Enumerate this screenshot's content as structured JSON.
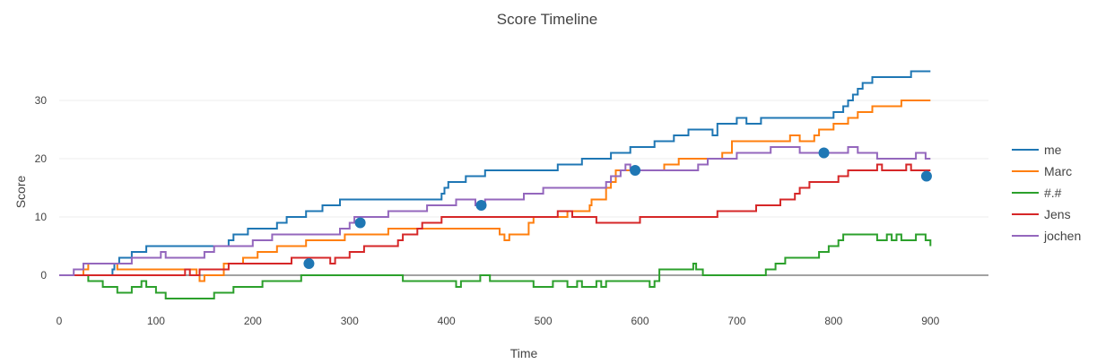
{
  "chart_data": {
    "type": "line",
    "line_shape": "step",
    "title": "Score Timeline",
    "xlabel": "Time",
    "ylabel": "Score",
    "xlim": [
      0,
      960
    ],
    "ylim": [
      -6,
      38
    ],
    "xticks": [
      0,
      100,
      200,
      300,
      400,
      500,
      600,
      700,
      800,
      900
    ],
    "yticks": [
      0,
      10,
      20,
      30
    ],
    "grid": true,
    "legend_position": "right",
    "series": [
      {
        "name": "me",
        "color": "#1f77b4",
        "points": [
          [
            0,
            0
          ],
          [
            50,
            0
          ],
          [
            55,
            1
          ],
          [
            57,
            2
          ],
          [
            62,
            3
          ],
          [
            65,
            3
          ],
          [
            70,
            3
          ],
          [
            75,
            4
          ],
          [
            90,
            5
          ],
          [
            100,
            5
          ],
          [
            140,
            5
          ],
          [
            170,
            5
          ],
          [
            175,
            6
          ],
          [
            180,
            7
          ],
          [
            195,
            8
          ],
          [
            225,
            9
          ],
          [
            235,
            10
          ],
          [
            255,
            11
          ],
          [
            265,
            11
          ],
          [
            272,
            12
          ],
          [
            290,
            13
          ],
          [
            380,
            13
          ],
          [
            395,
            14
          ],
          [
            398,
            15
          ],
          [
            402,
            16
          ],
          [
            420,
            17
          ],
          [
            440,
            18
          ],
          [
            510,
            18
          ],
          [
            515,
            19
          ],
          [
            530,
            19
          ],
          [
            540,
            20
          ],
          [
            560,
            20
          ],
          [
            570,
            21
          ],
          [
            590,
            22
          ],
          [
            610,
            22
          ],
          [
            615,
            23
          ],
          [
            630,
            23
          ],
          [
            635,
            24
          ],
          [
            648,
            24
          ],
          [
            650,
            25
          ],
          [
            670,
            25
          ],
          [
            675,
            24
          ],
          [
            680,
            26
          ],
          [
            700,
            27
          ],
          [
            705,
            27
          ],
          [
            710,
            26
          ],
          [
            720,
            26
          ],
          [
            725,
            27
          ],
          [
            800,
            28
          ],
          [
            810,
            29
          ],
          [
            815,
            30
          ],
          [
            820,
            31
          ],
          [
            825,
            32
          ],
          [
            830,
            33
          ],
          [
            840,
            34
          ],
          [
            880,
            35
          ],
          [
            900,
            35
          ]
        ]
      },
      {
        "name": "Marc",
        "color": "#ff7f0e",
        "points": [
          [
            0,
            0
          ],
          [
            20,
            0
          ],
          [
            25,
            1
          ],
          [
            30,
            2
          ],
          [
            60,
            1
          ],
          [
            140,
            1
          ],
          [
            142,
            0
          ],
          [
            145,
            -1
          ],
          [
            150,
            0
          ],
          [
            155,
            0
          ],
          [
            170,
            2
          ],
          [
            190,
            3
          ],
          [
            200,
            3
          ],
          [
            205,
            4
          ],
          [
            210,
            4
          ],
          [
            215,
            4
          ],
          [
            225,
            5
          ],
          [
            245,
            5
          ],
          [
            255,
            6
          ],
          [
            280,
            6
          ],
          [
            290,
            6
          ],
          [
            295,
            7
          ],
          [
            310,
            7
          ],
          [
            320,
            7
          ],
          [
            335,
            7
          ],
          [
            340,
            8
          ],
          [
            450,
            8
          ],
          [
            455,
            7
          ],
          [
            460,
            6
          ],
          [
            465,
            7
          ],
          [
            470,
            7
          ],
          [
            485,
            9
          ],
          [
            490,
            10
          ],
          [
            505,
            10
          ],
          [
            510,
            10
          ],
          [
            520,
            10
          ],
          [
            525,
            11
          ],
          [
            540,
            11
          ],
          [
            545,
            11
          ],
          [
            548,
            12
          ],
          [
            550,
            13
          ],
          [
            560,
            13
          ],
          [
            565,
            15
          ],
          [
            570,
            16
          ],
          [
            575,
            18
          ],
          [
            590,
            18
          ],
          [
            600,
            18
          ],
          [
            610,
            18
          ],
          [
            625,
            19
          ],
          [
            640,
            20
          ],
          [
            660,
            20
          ],
          [
            685,
            21
          ],
          [
            690,
            21
          ],
          [
            695,
            23
          ],
          [
            710,
            23
          ],
          [
            750,
            23
          ],
          [
            755,
            24
          ],
          [
            765,
            23
          ],
          [
            770,
            23
          ],
          [
            780,
            24
          ],
          [
            785,
            25
          ],
          [
            800,
            26
          ],
          [
            815,
            27
          ],
          [
            825,
            28
          ],
          [
            840,
            29
          ],
          [
            870,
            30
          ],
          [
            880,
            30
          ],
          [
            900,
            30
          ]
        ]
      },
      {
        "name": "#.#",
        "color": "#2ca02c",
        "points": [
          [
            0,
            0
          ],
          [
            25,
            0
          ],
          [
            30,
            -1
          ],
          [
            45,
            -2
          ],
          [
            60,
            -3
          ],
          [
            75,
            -2
          ],
          [
            85,
            -1
          ],
          [
            90,
            -2
          ],
          [
            100,
            -3
          ],
          [
            110,
            -4
          ],
          [
            155,
            -4
          ],
          [
            160,
            -3
          ],
          [
            180,
            -2
          ],
          [
            210,
            -1
          ],
          [
            245,
            -1
          ],
          [
            250,
            0
          ],
          [
            335,
            0
          ],
          [
            350,
            0
          ],
          [
            355,
            -1
          ],
          [
            400,
            -1
          ],
          [
            410,
            -2
          ],
          [
            415,
            -1
          ],
          [
            420,
            -1
          ],
          [
            425,
            -1
          ],
          [
            435,
            0
          ],
          [
            440,
            0
          ],
          [
            445,
            -1
          ],
          [
            470,
            -1
          ],
          [
            480,
            -1
          ],
          [
            490,
            -2
          ],
          [
            500,
            -2
          ],
          [
            510,
            -1
          ],
          [
            515,
            -1
          ],
          [
            525,
            -2
          ],
          [
            535,
            -1
          ],
          [
            540,
            -2
          ],
          [
            555,
            -1
          ],
          [
            560,
            -2
          ],
          [
            565,
            -1
          ],
          [
            600,
            -1
          ],
          [
            610,
            -2
          ],
          [
            615,
            -1
          ],
          [
            620,
            1
          ],
          [
            650,
            1
          ],
          [
            655,
            2
          ],
          [
            658,
            1
          ],
          [
            665,
            0
          ],
          [
            680,
            0
          ],
          [
            715,
            0
          ],
          [
            730,
            1
          ],
          [
            740,
            2
          ],
          [
            750,
            3
          ],
          [
            775,
            3
          ],
          [
            785,
            4
          ],
          [
            795,
            5
          ],
          [
            805,
            6
          ],
          [
            810,
            7
          ],
          [
            835,
            7
          ],
          [
            845,
            6
          ],
          [
            850,
            6
          ],
          [
            855,
            7
          ],
          [
            860,
            6
          ],
          [
            865,
            7
          ],
          [
            870,
            6
          ],
          [
            875,
            6
          ],
          [
            885,
            7
          ],
          [
            895,
            6
          ],
          [
            900,
            5
          ]
        ]
      },
      {
        "name": "Jens",
        "color": "#d62728",
        "points": [
          [
            0,
            0
          ],
          [
            125,
            0
          ],
          [
            130,
            1
          ],
          [
            135,
            0
          ],
          [
            140,
            0
          ],
          [
            145,
            1
          ],
          [
            170,
            1
          ],
          [
            175,
            2
          ],
          [
            240,
            3
          ],
          [
            275,
            3
          ],
          [
            280,
            2
          ],
          [
            285,
            3
          ],
          [
            290,
            3
          ],
          [
            300,
            4
          ],
          [
            315,
            5
          ],
          [
            345,
            5
          ],
          [
            350,
            6
          ],
          [
            355,
            7
          ],
          [
            365,
            7
          ],
          [
            370,
            8
          ],
          [
            375,
            9
          ],
          [
            390,
            9
          ],
          [
            395,
            10
          ],
          [
            410,
            10
          ],
          [
            420,
            10
          ],
          [
            430,
            10
          ],
          [
            445,
            10
          ],
          [
            490,
            10
          ],
          [
            500,
            10
          ],
          [
            515,
            11
          ],
          [
            530,
            10
          ],
          [
            550,
            10
          ],
          [
            555,
            9
          ],
          [
            580,
            9
          ],
          [
            590,
            9
          ],
          [
            600,
            10
          ],
          [
            620,
            10
          ],
          [
            625,
            10
          ],
          [
            640,
            10
          ],
          [
            680,
            11
          ],
          [
            700,
            11
          ],
          [
            710,
            11
          ],
          [
            720,
            12
          ],
          [
            740,
            12
          ],
          [
            745,
            13
          ],
          [
            760,
            14
          ],
          [
            765,
            15
          ],
          [
            775,
            16
          ],
          [
            805,
            17
          ],
          [
            815,
            18
          ],
          [
            835,
            18
          ],
          [
            845,
            19
          ],
          [
            850,
            18
          ],
          [
            870,
            18
          ],
          [
            875,
            19
          ],
          [
            880,
            18
          ],
          [
            900,
            18
          ]
        ]
      },
      {
        "name": "jochen",
        "color": "#9467bd",
        "points": [
          [
            0,
            0
          ],
          [
            15,
            1
          ],
          [
            25,
            2
          ],
          [
            70,
            2
          ],
          [
            75,
            3
          ],
          [
            95,
            3
          ],
          [
            105,
            4
          ],
          [
            110,
            3
          ],
          [
            140,
            3
          ],
          [
            150,
            4
          ],
          [
            160,
            5
          ],
          [
            195,
            5
          ],
          [
            200,
            6
          ],
          [
            215,
            6
          ],
          [
            220,
            7
          ],
          [
            230,
            7
          ],
          [
            285,
            7
          ],
          [
            290,
            8
          ],
          [
            300,
            9
          ],
          [
            305,
            10
          ],
          [
            320,
            10
          ],
          [
            330,
            10
          ],
          [
            340,
            11
          ],
          [
            365,
            11
          ],
          [
            375,
            11
          ],
          [
            380,
            12
          ],
          [
            400,
            12
          ],
          [
            410,
            13
          ],
          [
            420,
            13
          ],
          [
            430,
            12
          ],
          [
            440,
            13
          ],
          [
            470,
            13
          ],
          [
            480,
            14
          ],
          [
            490,
            14
          ],
          [
            500,
            15
          ],
          [
            520,
            15
          ],
          [
            560,
            15
          ],
          [
            565,
            16
          ],
          [
            570,
            17
          ],
          [
            580,
            18
          ],
          [
            585,
            19
          ],
          [
            590,
            18
          ],
          [
            600,
            18
          ],
          [
            650,
            18
          ],
          [
            660,
            19
          ],
          [
            670,
            20
          ],
          [
            700,
            21
          ],
          [
            710,
            21
          ],
          [
            720,
            21
          ],
          [
            730,
            21
          ],
          [
            735,
            22
          ],
          [
            760,
            22
          ],
          [
            765,
            21
          ],
          [
            775,
            21
          ],
          [
            790,
            21
          ],
          [
            800,
            21
          ],
          [
            815,
            22
          ],
          [
            825,
            21
          ],
          [
            830,
            21
          ],
          [
            845,
            20
          ],
          [
            880,
            20
          ],
          [
            885,
            21
          ],
          [
            895,
            20
          ],
          [
            900,
            20
          ]
        ]
      }
    ],
    "markers": {
      "color": "#1f77b4",
      "points": [
        [
          258,
          2
        ],
        [
          311,
          9
        ],
        [
          436,
          12
        ],
        [
          595,
          18
        ],
        [
          790,
          21
        ],
        [
          896,
          17
        ]
      ]
    }
  }
}
